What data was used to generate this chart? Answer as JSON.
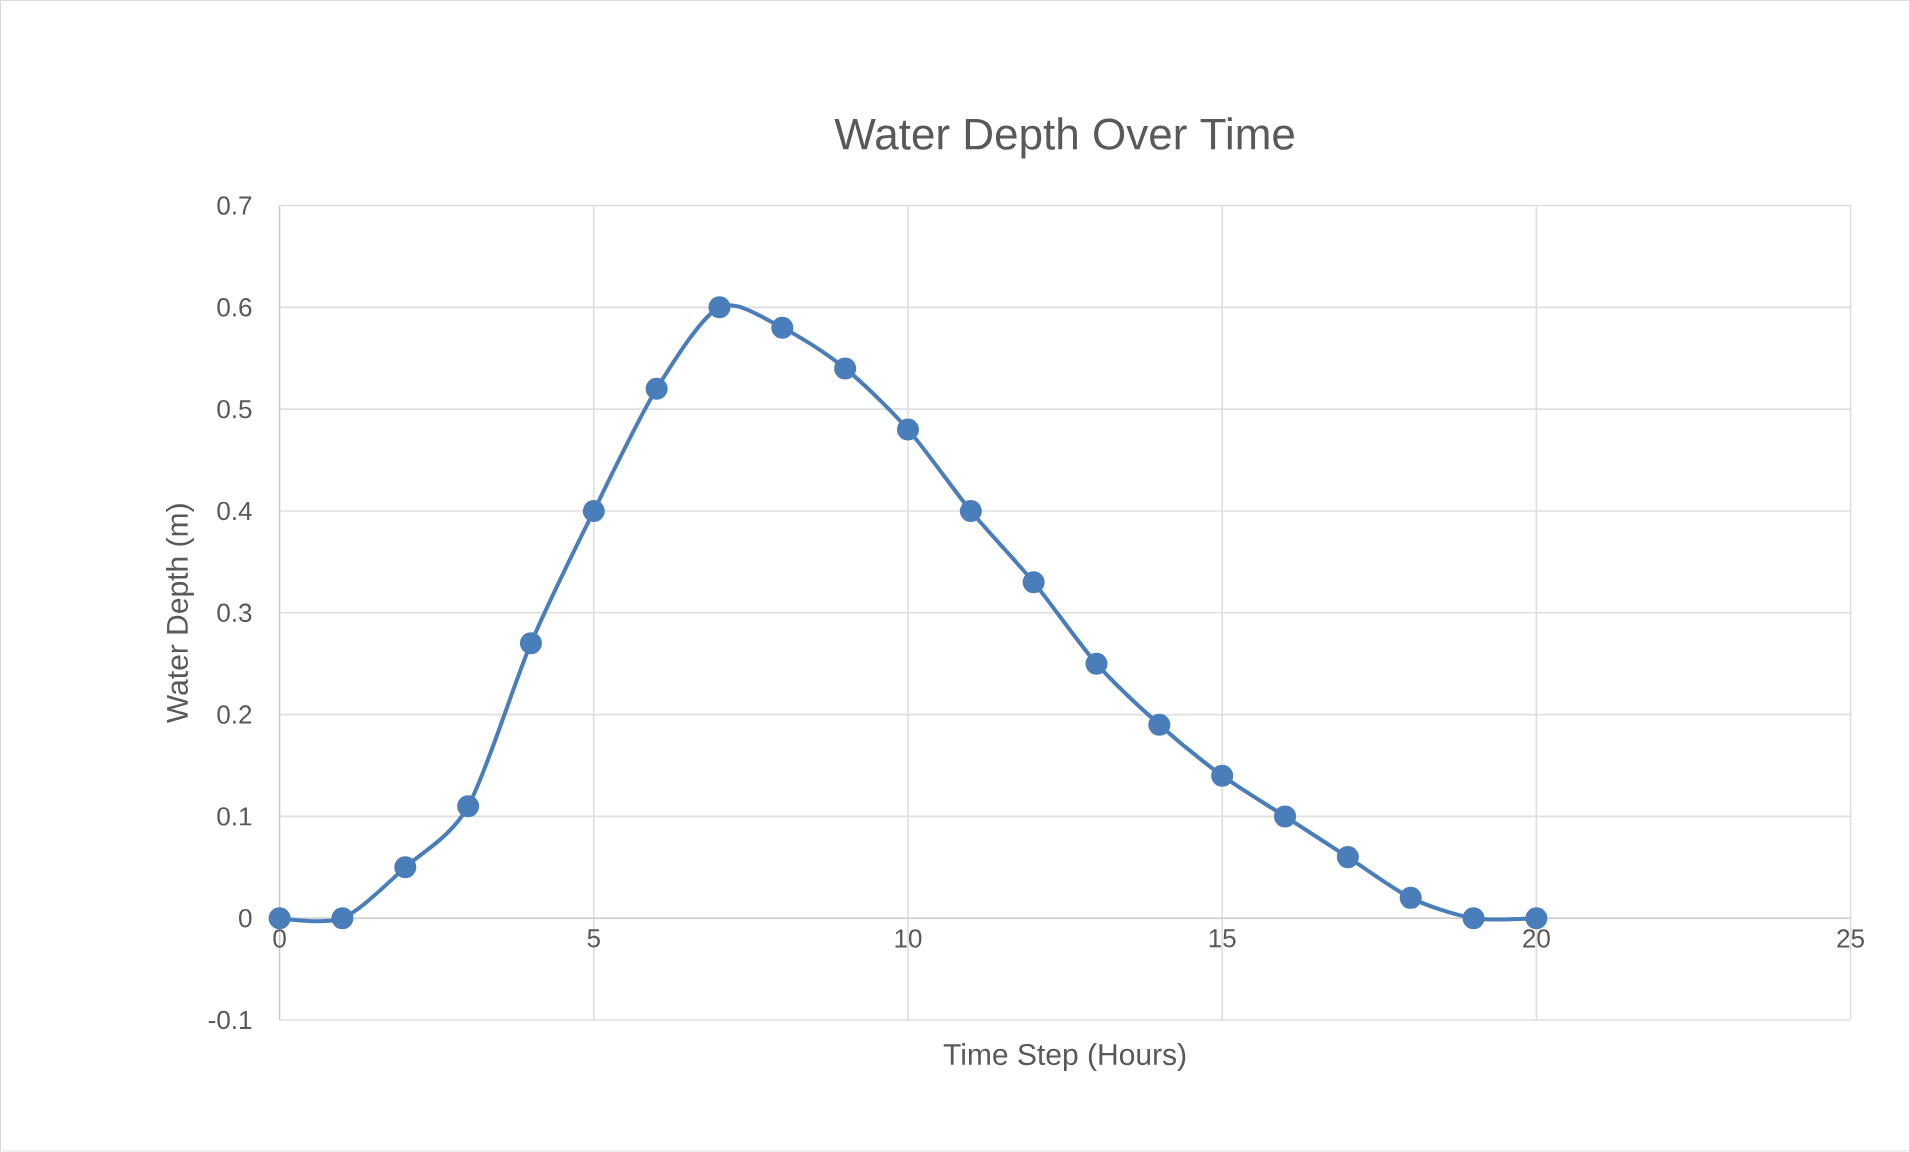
{
  "chart_data": {
    "type": "line",
    "title": "Water Depth Over Time",
    "xlabel": "Time Step (Hours)",
    "ylabel": "Water Depth (m)",
    "x": [
      0,
      1,
      2,
      3,
      4,
      5,
      6,
      7,
      8,
      9,
      10,
      11,
      12,
      13,
      14,
      15,
      16,
      17,
      18,
      19,
      20
    ],
    "series": [
      {
        "color": "#4a7ebb",
        "values": [
          0,
          0,
          0.05,
          0.11,
          0.27,
          0.4,
          0.52,
          0.6,
          0.58,
          0.54,
          0.48,
          0.4,
          0.33,
          0.25,
          0.19,
          0.14,
          0.1,
          0.06,
          0.02,
          0,
          0
        ]
      }
    ],
    "xlim": [
      0,
      25
    ],
    "xticks": [
      0,
      5,
      10,
      15,
      20,
      25
    ],
    "ylim": [
      -0.1,
      0.7
    ],
    "yticks": [
      -0.1,
      0,
      0.1,
      0.2,
      0.3,
      0.4,
      0.5,
      0.6,
      0.7
    ],
    "grid": true,
    "marker": "circle",
    "line_style": "solid"
  }
}
